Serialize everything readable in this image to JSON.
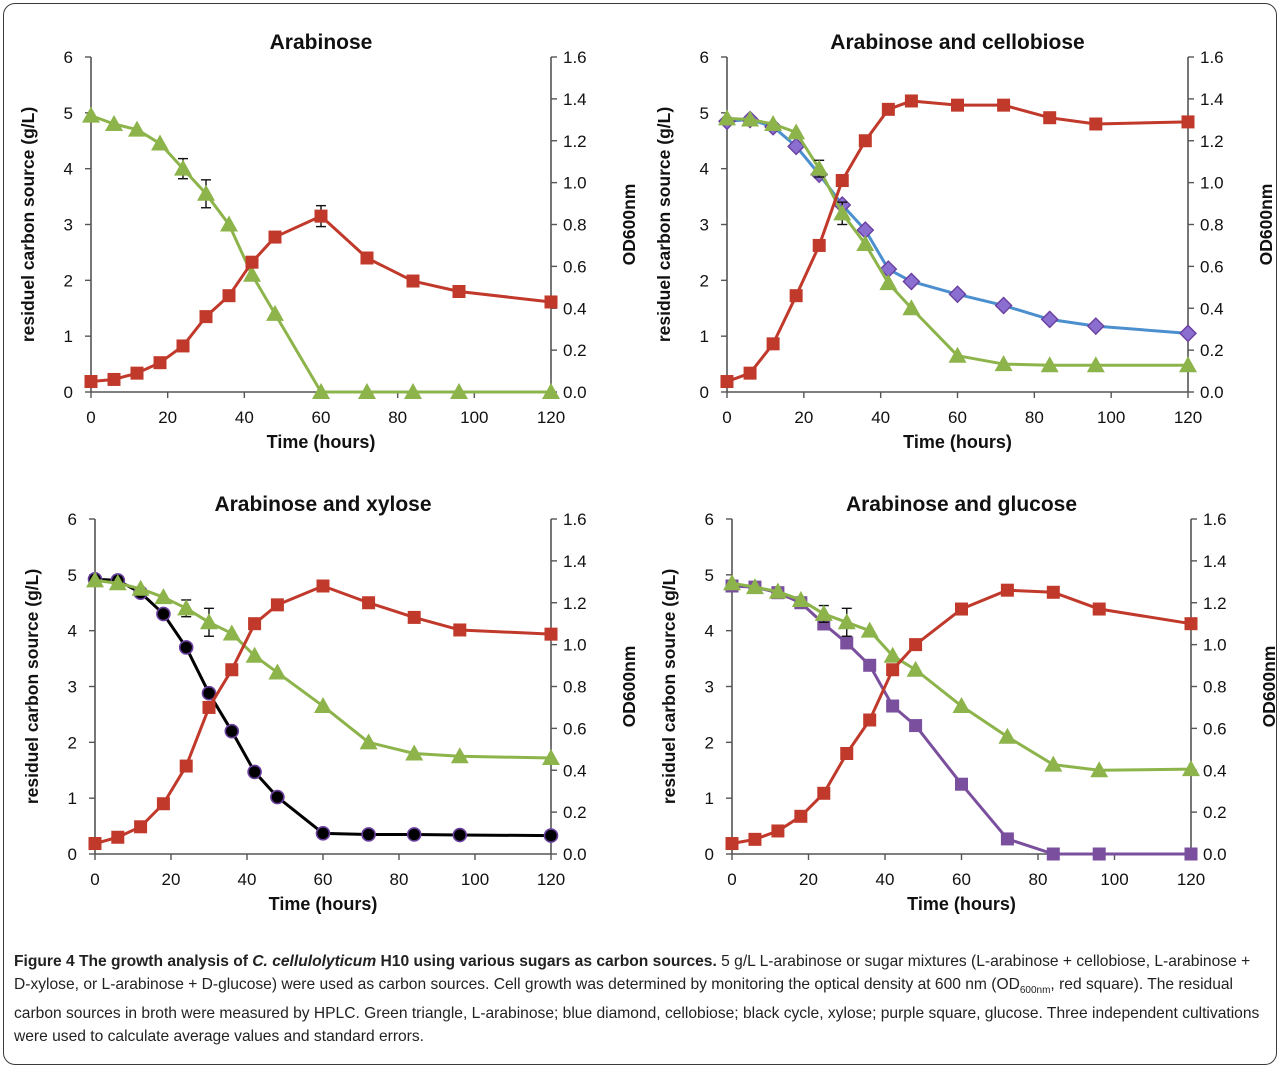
{
  "colors": {
    "od600": "#c0392b",
    "arabinose": "#8db44b",
    "cellobiose": "#4c8fcf",
    "xylose": "#000000",
    "glucose": "#7a4f9e",
    "marker_edge_diamond": "#6a3fa0",
    "marker_edge_circle": "#6a3fa0"
  },
  "caption": {
    "title_a": "Figure 4 The growth analysis of ",
    "title_italic": "C. cellulolyticum",
    "title_b": " H10 using various sugars as carbon sources.",
    "body_a": " 5 g/L L-arabinose or sugar mixtures (L-arabinose + cellobiose, L-arabinose + D-xylose, or L-arabinose + D-glucose) were used as carbon sources. Cell growth was determined by monitoring the optical density at 600 nm (OD",
    "body_sub": "600nm",
    "body_b": ", red square). The residual carbon sources in broth were measured by HPLC. Green triangle, L-arabinose; blue diamond, cellobiose; black cycle, xylose; purple square, glucose. Three independent cultivations were used to calculate average values and standard errors."
  },
  "chart_data": [
    {
      "type": "line",
      "title": "Arabinose",
      "xlabel": "Time (hours)",
      "ylabel": "residuel carbon source (g/L)",
      "y2label": "OD600nm",
      "xlim": [
        0,
        120
      ],
      "ylim": [
        0,
        6
      ],
      "y2lim": [
        0,
        1.6
      ],
      "xticks": [
        "0",
        "20",
        "40",
        "60",
        "80",
        "100",
        "120"
      ],
      "yticks": [
        "0",
        "1",
        "2",
        "3",
        "4",
        "5",
        "6"
      ],
      "y2ticks": [
        "0.0",
        "0.2",
        "0.4",
        "0.6",
        "0.8",
        "1.0",
        "1.2",
        "1.4",
        "1.6"
      ],
      "series": [
        {
          "key": "od",
          "axis": "y2",
          "marker": "square",
          "color": "#c0392b",
          "x": [
            0,
            6,
            12,
            18,
            24,
            30,
            36,
            42,
            48,
            60,
            72,
            84,
            96,
            120
          ],
          "y": [
            0.05,
            0.06,
            0.09,
            0.14,
            0.22,
            0.36,
            0.46,
            0.62,
            0.74,
            0.84,
            0.64,
            0.53,
            0.48,
            0.43
          ],
          "err": [
            0,
            0,
            0,
            0,
            0,
            0,
            0,
            0,
            0,
            0.05,
            0,
            0,
            0,
            0
          ]
        },
        {
          "key": "arabinose",
          "axis": "y",
          "marker": "triangle",
          "color": "#8db44b",
          "x": [
            0,
            6,
            12,
            18,
            24,
            30,
            36,
            42,
            48,
            60,
            72,
            84,
            96,
            120
          ],
          "y": [
            4.95,
            4.8,
            4.7,
            4.45,
            4.0,
            3.55,
            3.0,
            2.1,
            1.4,
            0.0,
            0.0,
            0.0,
            0.0,
            0.0
          ],
          "err": [
            0,
            0,
            0,
            0,
            0.18,
            0.25,
            0,
            0,
            0,
            0,
            0,
            0,
            0,
            0
          ]
        }
      ]
    },
    {
      "type": "line",
      "title": "Arabinose and cellobiose",
      "xlabel": "Time (hours)",
      "ylabel": "residuel carbon source (g/L)",
      "y2label": "OD600nm",
      "xlim": [
        0,
        120
      ],
      "ylim": [
        0,
        6
      ],
      "y2lim": [
        0,
        1.6
      ],
      "xticks": [
        "0",
        "20",
        "40",
        "60",
        "80",
        "100",
        "120"
      ],
      "yticks": [
        "0",
        "1",
        "2",
        "3",
        "4",
        "5",
        "6"
      ],
      "y2ticks": [
        "0.0",
        "0.2",
        "0.4",
        "0.6",
        "0.8",
        "1.0",
        "1.2",
        "1.4",
        "1.6"
      ],
      "series": [
        {
          "key": "od",
          "axis": "y2",
          "marker": "square",
          "color": "#c0392b",
          "x": [
            0,
            6,
            12,
            18,
            24,
            30,
            36,
            42,
            48,
            60,
            72,
            84,
            96,
            120
          ],
          "y": [
            0.05,
            0.09,
            0.23,
            0.46,
            0.7,
            1.01,
            1.2,
            1.35,
            1.39,
            1.37,
            1.37,
            1.31,
            1.28,
            1.29
          ],
          "err": [
            0,
            0,
            0,
            0,
            0,
            0,
            0,
            0,
            0,
            0,
            0,
            0,
            0,
            0
          ]
        },
        {
          "key": "arabinose",
          "axis": "y",
          "marker": "triangle",
          "color": "#8db44b",
          "x": [
            0,
            6,
            12,
            18,
            24,
            30,
            36,
            42,
            48,
            60,
            72,
            84,
            96,
            120
          ],
          "y": [
            4.9,
            4.88,
            4.8,
            4.65,
            4.0,
            3.2,
            2.65,
            1.95,
            1.5,
            0.65,
            0.5,
            0.48,
            0.48,
            0.48
          ],
          "err": [
            0,
            0,
            0,
            0,
            0.15,
            0.2,
            0,
            0,
            0,
            0,
            0,
            0,
            0,
            0
          ]
        },
        {
          "key": "cellobiose",
          "axis": "y",
          "marker": "diamond",
          "color": "#4c8fcf",
          "x": [
            0,
            6,
            12,
            18,
            24,
            30,
            36,
            42,
            48,
            60,
            72,
            84,
            96,
            120
          ],
          "y": [
            4.85,
            4.88,
            4.75,
            4.4,
            3.9,
            3.35,
            2.9,
            2.2,
            1.98,
            1.75,
            1.55,
            1.3,
            1.18,
            1.05
          ],
          "err": [
            0,
            0,
            0,
            0,
            0,
            0,
            0,
            0,
            0,
            0,
            0,
            0,
            0,
            0
          ]
        }
      ]
    },
    {
      "type": "line",
      "title": "Arabinose and xylose",
      "xlabel": "Time (hours)",
      "ylabel": "residuel carbon source (g/L)",
      "y2label": "OD600nm",
      "xlim": [
        0,
        120
      ],
      "ylim": [
        0,
        6
      ],
      "y2lim": [
        0,
        1.6
      ],
      "xticks": [
        "0",
        "20",
        "40",
        "60",
        "80",
        "100",
        "120"
      ],
      "yticks": [
        "0",
        "1",
        "2",
        "3",
        "4",
        "5",
        "6"
      ],
      "y2ticks": [
        "0.0",
        "0.2",
        "0.4",
        "0.6",
        "0.8",
        "1.0",
        "1.2",
        "1.4",
        "1.6"
      ],
      "series": [
        {
          "key": "od",
          "axis": "y2",
          "marker": "square",
          "color": "#c0392b",
          "x": [
            0,
            6,
            12,
            18,
            24,
            30,
            36,
            42,
            48,
            60,
            72,
            84,
            96,
            120
          ],
          "y": [
            0.05,
            0.08,
            0.13,
            0.24,
            0.42,
            0.7,
            0.88,
            1.1,
            1.19,
            1.28,
            1.2,
            1.13,
            1.07,
            1.05
          ],
          "err": [
            0,
            0,
            0,
            0,
            0,
            0,
            0,
            0,
            0,
            0,
            0,
            0,
            0,
            0
          ]
        },
        {
          "key": "arabinose",
          "axis": "y",
          "marker": "triangle",
          "color": "#8db44b",
          "x": [
            0,
            6,
            12,
            18,
            24,
            30,
            36,
            42,
            48,
            60,
            72,
            84,
            96,
            120
          ],
          "y": [
            4.9,
            4.85,
            4.75,
            4.6,
            4.4,
            4.15,
            3.95,
            3.55,
            3.25,
            2.65,
            2.0,
            1.8,
            1.75,
            1.72
          ],
          "err": [
            0,
            0,
            0,
            0,
            0.15,
            0.25,
            0,
            0,
            0,
            0,
            0,
            0,
            0,
            0
          ]
        },
        {
          "key": "xylose",
          "axis": "y",
          "marker": "circle",
          "color": "#000000",
          "x": [
            0,
            6,
            12,
            18,
            24,
            30,
            36,
            42,
            48,
            60,
            72,
            84,
            96,
            120
          ],
          "y": [
            4.92,
            4.9,
            4.68,
            4.3,
            3.7,
            2.88,
            2.2,
            1.47,
            1.02,
            0.37,
            0.35,
            0.35,
            0.34,
            0.33
          ],
          "err": [
            0,
            0,
            0,
            0,
            0,
            0,
            0,
            0,
            0,
            0,
            0,
            0,
            0,
            0
          ]
        }
      ]
    },
    {
      "type": "line",
      "title": "Arabinose and glucose",
      "xlabel": "Time (hours)",
      "ylabel": "residuel carbon source (g/L)",
      "y2label": "OD600nm",
      "xlim": [
        0,
        120
      ],
      "ylim": [
        0,
        6
      ],
      "y2lim": [
        0,
        1.6
      ],
      "xticks": [
        "0",
        "20",
        "40",
        "60",
        "80",
        "100",
        "120"
      ],
      "yticks": [
        "0",
        "1",
        "2",
        "3",
        "4",
        "5",
        "6"
      ],
      "y2ticks": [
        "0.0",
        "0.2",
        "0.4",
        "0.6",
        "0.8",
        "1.0",
        "1.2",
        "1.4",
        "1.6"
      ],
      "series": [
        {
          "key": "od",
          "axis": "y2",
          "marker": "square",
          "color": "#c0392b",
          "x": [
            0,
            6,
            12,
            18,
            24,
            30,
            36,
            42,
            48,
            60,
            72,
            84,
            96,
            120
          ],
          "y": [
            0.05,
            0.07,
            0.11,
            0.18,
            0.29,
            0.48,
            0.64,
            0.88,
            1.0,
            1.17,
            1.26,
            1.25,
            1.17,
            1.1
          ],
          "err": [
            0,
            0,
            0,
            0,
            0,
            0,
            0,
            0,
            0,
            0,
            0,
            0,
            0,
            0
          ]
        },
        {
          "key": "arabinose",
          "axis": "y",
          "marker": "triangle",
          "color": "#8db44b",
          "x": [
            0,
            6,
            12,
            18,
            24,
            30,
            36,
            42,
            48,
            60,
            72,
            84,
            96,
            120
          ],
          "y": [
            4.85,
            4.78,
            4.7,
            4.55,
            4.3,
            4.15,
            4.0,
            3.55,
            3.3,
            2.65,
            2.1,
            1.6,
            1.5,
            1.52
          ],
          "err": [
            0,
            0,
            0,
            0,
            0.15,
            0.25,
            0,
            0,
            0,
            0,
            0,
            0,
            0,
            0
          ]
        },
        {
          "key": "glucose",
          "axis": "y",
          "marker": "square",
          "color": "#7a4f9e",
          "x": [
            0,
            6,
            12,
            18,
            24,
            30,
            36,
            42,
            48,
            60,
            72,
            84,
            96,
            120
          ],
          "y": [
            4.8,
            4.78,
            4.68,
            4.5,
            4.12,
            3.78,
            3.38,
            2.65,
            2.3,
            1.25,
            0.27,
            0.0,
            0.0,
            0.0
          ],
          "err": [
            0,
            0,
            0,
            0,
            0,
            0,
            0,
            0,
            0,
            0,
            0,
            0,
            0,
            0
          ]
        }
      ]
    }
  ]
}
